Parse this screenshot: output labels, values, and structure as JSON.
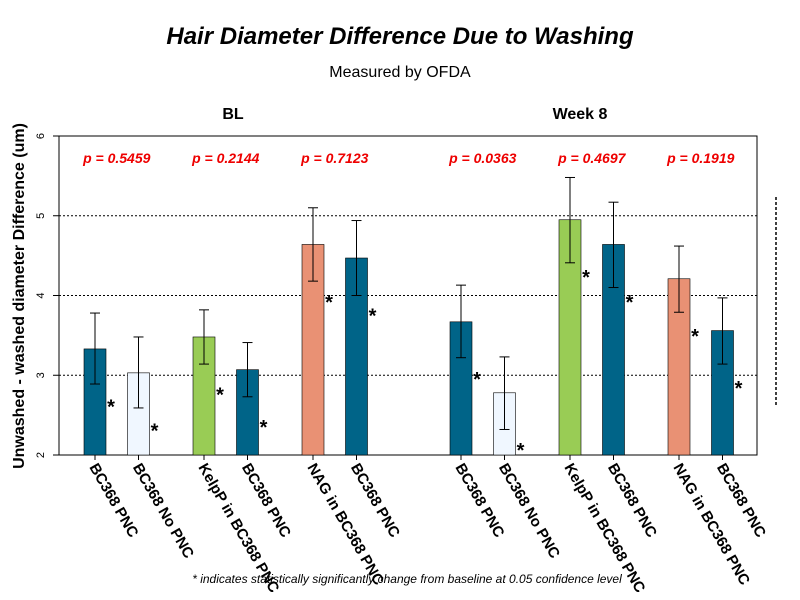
{
  "chart_data": {
    "type": "bar",
    "title": "Hair Diameter Difference Due to Washing",
    "subtitle": "Measured by OFDA",
    "ylabel": "Unwashed - washed diameter Difference (um)",
    "ylim": [
      2,
      6
    ],
    "yticks": [
      "2",
      "3",
      "4",
      "5",
      "6"
    ],
    "grid": "horizontal dotted",
    "footnote": "* indicates statistically significantly change from baseline at 0.05 confidence level",
    "groups": [
      {
        "label": "BL",
        "bars": [
          {
            "category": "BC368 PNC",
            "value": 3.33,
            "err_low": 2.89,
            "err_high": 3.78,
            "color": "#006488",
            "star": "*"
          },
          {
            "category": "BC368 No PNC",
            "value": 3.03,
            "err_low": 2.59,
            "err_high": 3.48,
            "color": "#f0f7ff",
            "star": "*"
          },
          {
            "category": "KelpP in BC368 PNC",
            "value": 3.48,
            "err_low": 3.14,
            "err_high": 3.82,
            "color": "#99cc55",
            "star": "*"
          },
          {
            "category": "BC368 PNC",
            "value": 3.07,
            "err_low": 2.73,
            "err_high": 3.41,
            "color": "#006488",
            "star": "*"
          },
          {
            "category": "NAG in BC368 PNC",
            "value": 4.64,
            "err_low": 4.18,
            "err_high": 5.1,
            "color": "#e99174",
            "star": "*"
          },
          {
            "category": "BC368 PNC",
            "value": 4.47,
            "err_low": 4.0,
            "err_high": 4.94,
            "color": "#006488",
            "star": "*"
          }
        ],
        "pvalues": [
          "p = 0.5459",
          "p = 0.2144",
          "p = 0.7123"
        ]
      },
      {
        "label": "Week 8",
        "bars": [
          {
            "category": "BC368 PNC",
            "value": 3.67,
            "err_low": 3.22,
            "err_high": 4.13,
            "color": "#006488",
            "star": "*"
          },
          {
            "category": "BC368 No PNC",
            "value": 2.78,
            "err_low": 2.32,
            "err_high": 3.23,
            "color": "#f0f7ff",
            "star": "*"
          },
          {
            "category": "KelpP in BC368 PNC",
            "value": 4.95,
            "err_low": 4.41,
            "err_high": 5.48,
            "color": "#99cc55",
            "star": "*"
          },
          {
            "category": "BC368 PNC",
            "value": 4.64,
            "err_low": 4.1,
            "err_high": 5.17,
            "color": "#006488",
            "star": "*"
          },
          {
            "category": "NAG in BC368 PNC",
            "value": 4.21,
            "err_low": 3.79,
            "err_high": 4.62,
            "color": "#e99174",
            "star": "*"
          },
          {
            "category": "BC368 PNC",
            "value": 3.56,
            "err_low": 3.14,
            "err_high": 3.97,
            "color": "#006488",
            "star": "*"
          }
        ],
        "pvalues": [
          "p = 0.0363",
          "p = 0.4697",
          "p = 0.1919"
        ]
      }
    ]
  }
}
